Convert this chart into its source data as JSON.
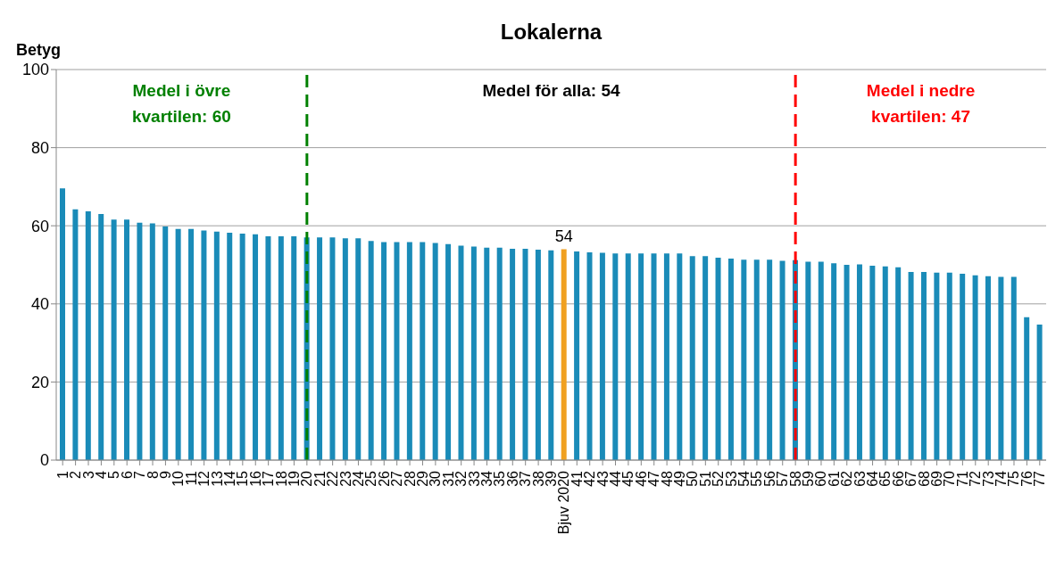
{
  "chart_data": {
    "type": "bar",
    "title": "Lokalerna",
    "ylabel": "Betyg",
    "categories": [
      "1",
      "2",
      "3",
      "4",
      "5",
      "6",
      "7",
      "8",
      "9",
      "10",
      "11",
      "12",
      "13",
      "14",
      "15",
      "16",
      "17",
      "18",
      "19",
      "20",
      "21",
      "22",
      "23",
      "24",
      "25",
      "26",
      "27",
      "28",
      "29",
      "30",
      "31",
      "32",
      "33",
      "34",
      "35",
      "36",
      "37",
      "38",
      "39",
      "Bjuv 2020",
      "41",
      "42",
      "43",
      "44",
      "45",
      "46",
      "47",
      "48",
      "49",
      "50",
      "51",
      "52",
      "53",
      "54",
      "55",
      "56",
      "57",
      "58",
      "59",
      "60",
      "61",
      "62",
      "63",
      "64",
      "65",
      "66",
      "67",
      "68",
      "69",
      "70",
      "71",
      "72",
      "73",
      "74",
      "75",
      "76",
      "77"
    ],
    "values": [
      69.6,
      64.2,
      63.7,
      63.0,
      61.6,
      61.6,
      60.8,
      60.6,
      59.8,
      59.2,
      59.2,
      58.8,
      58.5,
      58.2,
      58.0,
      57.8,
      57.3,
      57.3,
      57.3,
      57.0,
      57.0,
      57.0,
      56.8,
      56.8,
      56.1,
      55.8,
      55.8,
      55.8,
      55.8,
      55.6,
      55.3,
      54.9,
      54.7,
      54.4,
      54.4,
      54.1,
      54.1,
      53.9,
      53.7,
      54,
      53.4,
      53.2,
      53.1,
      52.9,
      52.9,
      52.9,
      52.9,
      52.9,
      52.9,
      52.2,
      52.2,
      51.8,
      51.6,
      51.3,
      51.3,
      51.3,
      51.0,
      51.2,
      50.8,
      50.8,
      50.4,
      50.0,
      50.1,
      49.8,
      49.6,
      49.4,
      48.2,
      48.2,
      48.0,
      48.0,
      47.7,
      47.3,
      47.1,
      46.9,
      46.9,
      36.6,
      34.7
    ],
    "colors": [
      "#1a8bb8",
      "#1a8bb8",
      "#1a8bb8",
      "#1a8bb8",
      "#1a8bb8",
      "#1a8bb8",
      "#1a8bb8",
      "#1a8bb8",
      "#1a8bb8",
      "#1a8bb8",
      "#1a8bb8",
      "#1a8bb8",
      "#1a8bb8",
      "#1a8bb8",
      "#1a8bb8",
      "#1a8bb8",
      "#1a8bb8",
      "#1a8bb8",
      "#1a8bb8",
      "#1a8bb8",
      "#1a8bb8",
      "#1a8bb8",
      "#1a8bb8",
      "#1a8bb8",
      "#1a8bb8",
      "#1a8bb8",
      "#1a8bb8",
      "#1a8bb8",
      "#1a8bb8",
      "#1a8bb8",
      "#1a8bb8",
      "#1a8bb8",
      "#1a8bb8",
      "#1a8bb8",
      "#1a8bb8",
      "#1a8bb8",
      "#1a8bb8",
      "#1a8bb8",
      "#1a8bb8",
      "#f0a020",
      "#1a8bb8",
      "#1a8bb8",
      "#1a8bb8",
      "#1a8bb8",
      "#1a8bb8",
      "#1a8bb8",
      "#1a8bb8",
      "#1a8bb8",
      "#1a8bb8",
      "#1a8bb8",
      "#1a8bb8",
      "#1a8bb8",
      "#1a8bb8",
      "#1a8bb8",
      "#1a8bb8",
      "#1a8bb8",
      "#1a8bb8",
      "#1a8bb8",
      "#1a8bb8",
      "#1a8bb8",
      "#1a8bb8",
      "#1a8bb8",
      "#1a8bb8",
      "#1a8bb8",
      "#1a8bb8",
      "#1a8bb8",
      "#1a8bb8",
      "#1a8bb8",
      "#1a8bb8",
      "#1a8bb8",
      "#1a8bb8",
      "#1a8bb8",
      "#1a8bb8",
      "#1a8bb8",
      "#1a8bb8",
      "#1a8bb8",
      "#1a8bb8"
    ],
    "value_labels": [
      null,
      null,
      null,
      null,
      null,
      null,
      null,
      null,
      null,
      null,
      null,
      null,
      null,
      null,
      null,
      null,
      null,
      null,
      null,
      null,
      null,
      null,
      null,
      null,
      null,
      null,
      null,
      null,
      null,
      null,
      null,
      null,
      null,
      null,
      null,
      null,
      null,
      null,
      null,
      "54",
      null,
      null,
      null,
      null,
      null,
      null,
      null,
      null,
      null,
      null,
      null,
      null,
      null,
      null,
      null,
      null,
      null,
      null,
      null,
      null,
      null,
      null,
      null,
      null,
      null,
      null,
      null,
      null,
      null,
      null,
      null,
      null,
      null,
      null,
      null,
      null,
      null
    ],
    "ylim": [
      0,
      100
    ],
    "yticks": [
      0,
      20,
      40,
      60,
      80,
      100
    ],
    "grid": "y",
    "ref_lines": [
      {
        "axis": "x",
        "value": "20",
        "label": "Medel i övre kvartilen: 60",
        "color": "#008000",
        "line_style": "dashed"
      },
      {
        "axis": "x",
        "value": "58",
        "label": "Medel i nedre kvartilen: 47",
        "color": "#ff0000",
        "line_style": "dashed"
      }
    ],
    "annotations": [
      "Medel för alla: 54"
    ]
  }
}
